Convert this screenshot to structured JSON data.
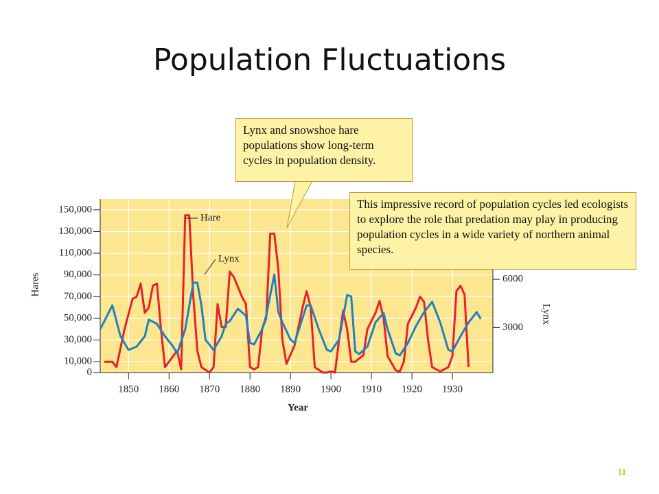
{
  "slide_title": "Population Fluctuations",
  "page_number": "11",
  "chart_data": {
    "type": "line",
    "xlabel": "Year",
    "ylabel": "Hares",
    "y2label": "Lynx",
    "xlim": [
      1843,
      1940
    ],
    "xticks": [
      1850,
      1860,
      1870,
      1880,
      1890,
      1900,
      1910,
      1920,
      1930
    ],
    "ylim": [
      0,
      160000
    ],
    "yticks": [
      0,
      {
        "value": 10000,
        "label": "10,000"
      },
      {
        "value": 30000,
        "label": "30,000"
      },
      {
        "value": 50000,
        "label": "50,000"
      },
      {
        "value": 70000,
        "label": "70,000"
      },
      {
        "value": 90000,
        "label": "90,000"
      },
      {
        "value": 110000,
        "label": "110,000"
      },
      {
        "value": 130000,
        "label": "130,000"
      },
      {
        "value": 150000,
        "label": "150,000"
      }
    ],
    "y2lim": [
      200,
      11000
    ],
    "y2ticks": [
      3000,
      6000
    ],
    "grid": true,
    "background": "#fce68f",
    "series": [
      {
        "name": "Hare",
        "color": "#e8202a",
        "x": [
          1844,
          1846,
          1847,
          1849,
          1851,
          1852,
          1853,
          1854,
          1855,
          1856,
          1857,
          1858,
          1859,
          1861,
          1862,
          1863,
          1864,
          1865,
          1866,
          1867,
          1868,
          1870,
          1871,
          1872,
          1873,
          1874,
          1875,
          1876,
          1878,
          1879,
          1880,
          1881,
          1882,
          1883,
          1884,
          1885,
          1886,
          1887,
          1888,
          1889,
          1891,
          1893,
          1894,
          1895,
          1896,
          1898,
          1899,
          1900,
          1901,
          1902,
          1903,
          1904,
          1905,
          1906,
          1907,
          1908,
          1909,
          1911,
          1912,
          1913,
          1914,
          1916,
          1917,
          1918,
          1919,
          1921,
          1922,
          1923,
          1924,
          1925,
          1927,
          1929,
          1930,
          1931,
          1932,
          1933,
          1934
        ],
        "values": [
          10000,
          10000,
          5000,
          40000,
          68000,
          70000,
          82000,
          55000,
          60000,
          80000,
          82000,
          40000,
          5000,
          15000,
          20000,
          3000,
          145000,
          145000,
          70000,
          20000,
          5000,
          0,
          5000,
          63000,
          42000,
          42000,
          93000,
          88000,
          70000,
          63000,
          5000,
          3000,
          5000,
          40000,
          50000,
          128000,
          128000,
          95000,
          30000,
          8000,
          25000,
          60000,
          75000,
          60000,
          5000,
          0,
          0,
          1000,
          0,
          30000,
          57000,
          40000,
          10000,
          10000,
          13000,
          16000,
          40000,
          55000,
          66000,
          50000,
          15000,
          2000,
          1000,
          10000,
          45000,
          60000,
          70000,
          65000,
          30000,
          5000,
          1000,
          5000,
          15000,
          75000,
          80000,
          72000,
          5000
        ]
      },
      {
        "name": "Lynx",
        "color": "#1e82c0",
        "axis": "y2",
        "x": [
          1843,
          1846,
          1848,
          1850,
          1852,
          1854,
          1855,
          1857,
          1859,
          1861,
          1862,
          1864,
          1866,
          1867,
          1868,
          1869,
          1871,
          1873,
          1874,
          1875,
          1877,
          1879,
          1880,
          1881,
          1883,
          1884,
          1886,
          1887,
          1888,
          1890,
          1891,
          1894,
          1895,
          1897,
          1899,
          1900,
          1902,
          1904,
          1905,
          1906,
          1907,
          1909,
          1911,
          1913,
          1914,
          1916,
          1917,
          1919,
          1921,
          1923,
          1925,
          1927,
          1929,
          1930,
          1932,
          1934,
          1936,
          1937
        ],
        "values": [
          2890,
          4380,
          2460,
          1610,
          1820,
          2460,
          3490,
          3230,
          2460,
          1820,
          1390,
          2890,
          5790,
          5790,
          4380,
          2250,
          1610,
          2460,
          3230,
          3400,
          4170,
          3740,
          2040,
          1950,
          2890,
          3740,
          6300,
          3960,
          3320,
          2250,
          2040,
          4380,
          4380,
          2890,
          1610,
          1520,
          2250,
          5020,
          4940,
          1520,
          1350,
          1820,
          3320,
          3910,
          2890,
          1390,
          1270,
          2040,
          3100,
          3960,
          4600,
          3320,
          1610,
          1520,
          2460,
          3320,
          3960,
          3540
        ]
      }
    ],
    "annotations": [
      "Lynx and snowshoe hare populations show long-term cycles in population density.",
      "This impressive record of population cycles led ecologists to explore the role that predation may play in producing population cycles in a wide variety of northern animal species."
    ]
  }
}
